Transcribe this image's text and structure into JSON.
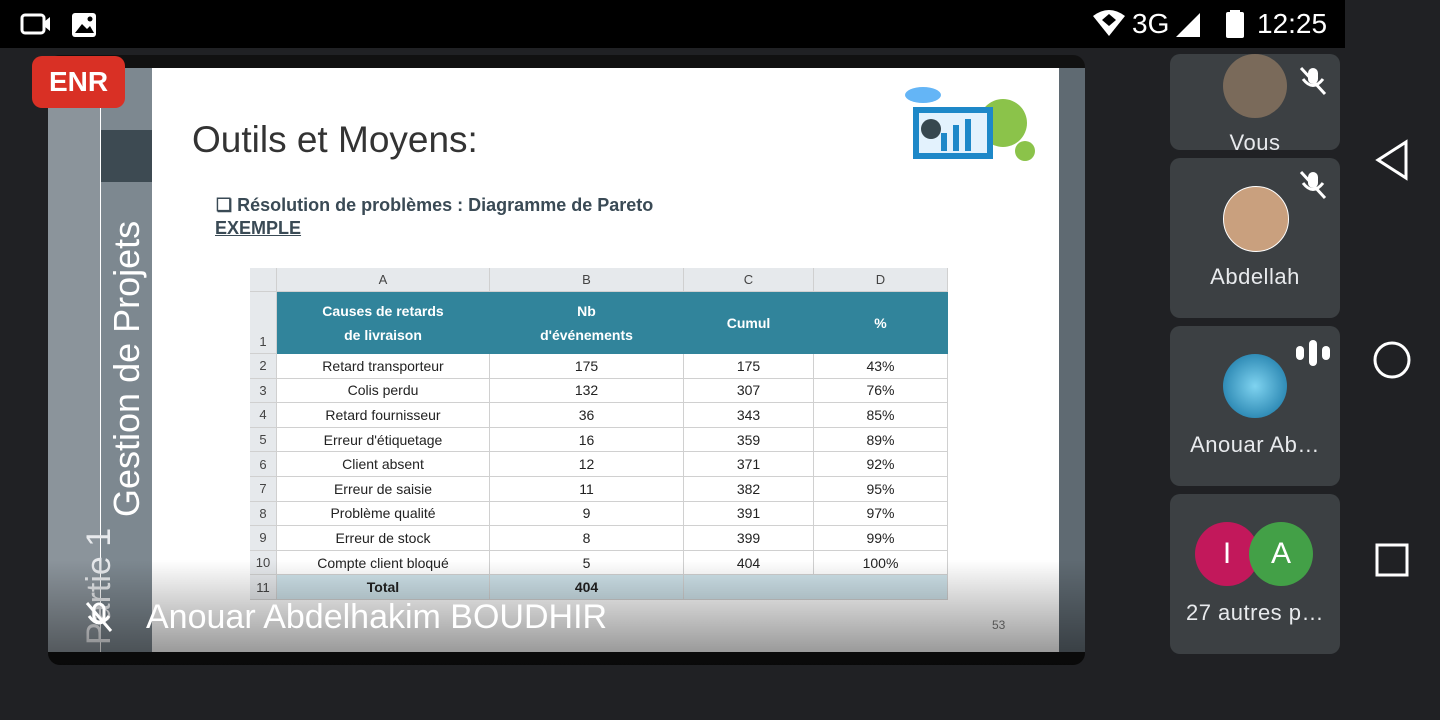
{
  "status_bar": {
    "network": "3G",
    "time": "12:25"
  },
  "recording_badge": "ENR",
  "slide": {
    "side_title": "Gestion de Projets",
    "part_label": "Partie 1",
    "title": "Outils et Moyens:",
    "bullet": "Résolution de problèmes : Diagramme de Pareto",
    "subheading": "EXEMPLE",
    "page_number": "53",
    "table": {
      "column_letters": [
        "A",
        "B",
        "C",
        "D"
      ],
      "row_numbers": [
        "1",
        "2",
        "3",
        "4",
        "5",
        "6",
        "7",
        "8",
        "9",
        "10",
        "11"
      ],
      "header": [
        "Causes de retards de livraison",
        "Nb d'événements",
        "Cumul",
        "%"
      ],
      "rows": [
        [
          "Retard transporteur",
          "175",
          "175",
          "43%"
        ],
        [
          "Colis perdu",
          "132",
          "307",
          "76%"
        ],
        [
          "Retard fournisseur",
          "36",
          "343",
          "85%"
        ],
        [
          "Erreur d'étiquetage",
          "16",
          "359",
          "89%"
        ],
        [
          "Client absent",
          "12",
          "371",
          "92%"
        ],
        [
          "Erreur de saisie",
          "11",
          "382",
          "95%"
        ],
        [
          "Problème qualité",
          "9",
          "391",
          "97%"
        ],
        [
          "Erreur de stock",
          "8",
          "399",
          "99%"
        ],
        [
          "Compte client bloqué",
          "5",
          "404",
          "100%"
        ]
      ],
      "total": [
        "Total",
        "404"
      ]
    }
  },
  "presenter_name": "Anouar Abdelhakim BOUDHIR",
  "participants": [
    {
      "name": "Vous"
    },
    {
      "name": "Abdellah"
    },
    {
      "name": "Anouar Ab…"
    },
    {
      "name": "27 autres p…",
      "avatars": [
        "I",
        "A"
      ]
    }
  ]
}
